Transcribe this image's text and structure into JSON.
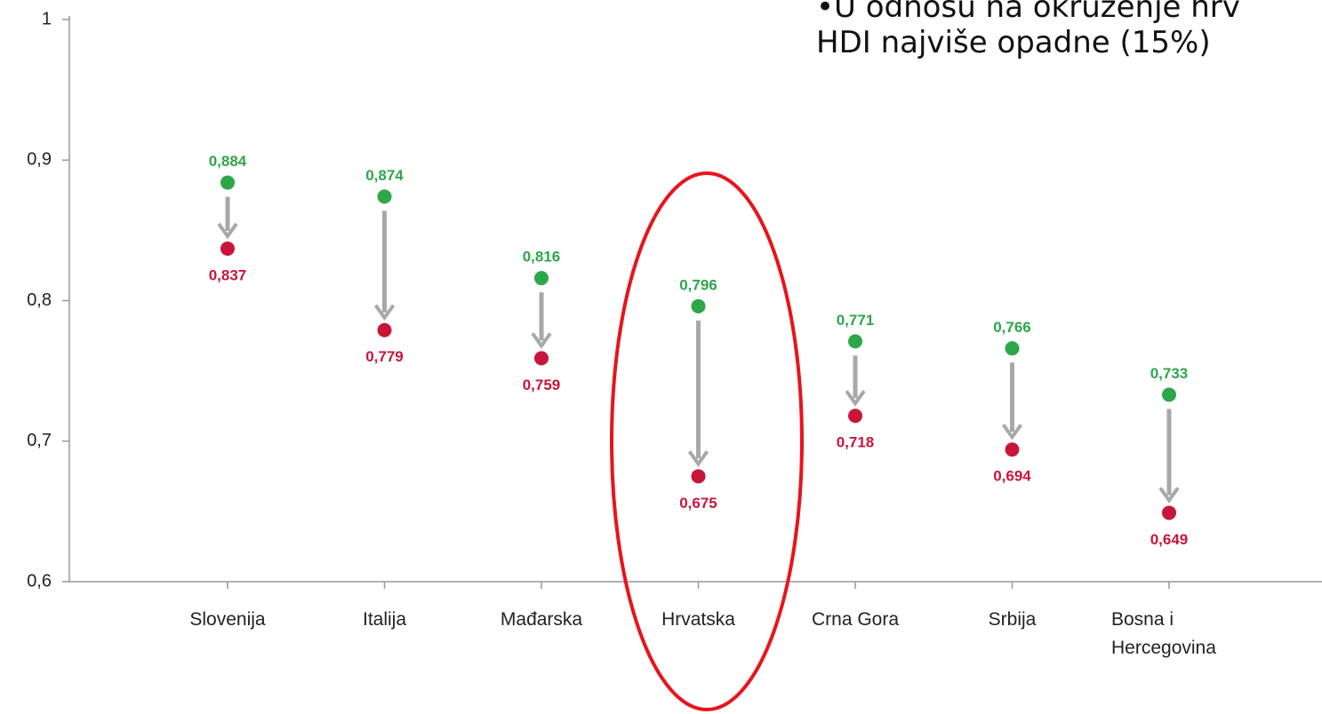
{
  "chart_data": {
    "type": "arrow-dot",
    "annotations": [
      "•U odnosu na okruženje hrv",
      "HDI najviše opadne (15%)"
    ],
    "categories": [
      "Slovenija",
      "Italija",
      "Mađarska",
      "Hrvatska",
      "Crna Gora",
      "Srbija",
      "Bosna i Hercegovina"
    ],
    "series": [
      {
        "color": "#2ea64a",
        "values": [
          0.884,
          0.874,
          0.816,
          0.796,
          0.771,
          0.766,
          0.733
        ],
        "value_labels": [
          "0,884",
          "0,874",
          "0,816",
          "0,796",
          "0,771",
          "0,766",
          "0,733"
        ]
      },
      {
        "color": "#c8163a",
        "values": [
          0.837,
          0.779,
          0.759,
          0.675,
          0.718,
          0.694,
          0.649
        ],
        "value_labels": [
          "0,837",
          "0,779",
          "0,759",
          "0,675",
          "0,718",
          "0,694",
          "0,649"
        ]
      }
    ],
    "ylim": [
      0.6,
      1
    ],
    "yticks": [
      {
        "value": 0.6,
        "label": "0,6"
      },
      {
        "value": 0.7,
        "label": "0,7"
      },
      {
        "value": 0.8,
        "label": "0,8"
      },
      {
        "value": 0.9,
        "label": "0,9"
      },
      1
    ]
  }
}
